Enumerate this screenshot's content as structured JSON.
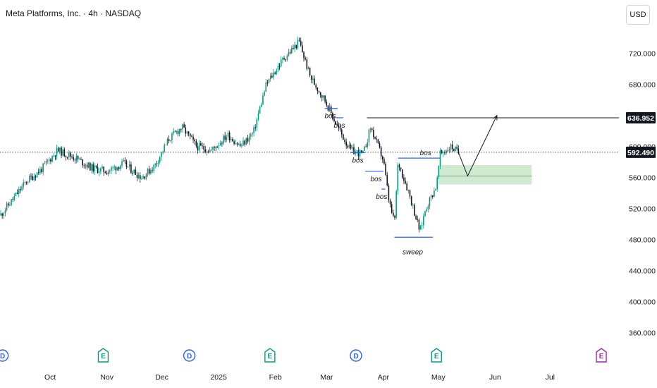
{
  "header": {
    "title": "Meta Platforms, Inc. · 4h · NASDAQ",
    "currency": "USD"
  },
  "chart_data": {
    "type": "candlestick",
    "xlabel": "",
    "ylabel": "",
    "ylim": [
      345,
      757
    ],
    "y_ticks": [
      360,
      400,
      440,
      480,
      520,
      560,
      600,
      640,
      680,
      720
    ],
    "y_tick_labels": [
      "360.000",
      "400.000",
      "440.000",
      "480.000",
      "520.000",
      "560.000",
      "600.000",
      "640.000",
      "680.000",
      "720.000"
    ],
    "x_ticks": [
      "Oct",
      "Nov",
      "Dec",
      "2025",
      "Feb",
      "Mar",
      "Apr",
      "May",
      "Jun",
      "Jul"
    ],
    "grid": false,
    "price_path": [
      {
        "date": "2024-09-04",
        "price": 512
      },
      {
        "date": "2024-09-10",
        "price": 530
      },
      {
        "date": "2024-09-18",
        "price": 555
      },
      {
        "date": "2024-09-26",
        "price": 570
      },
      {
        "date": "2024-10-05",
        "price": 595
      },
      {
        "date": "2024-10-15",
        "price": 585
      },
      {
        "date": "2024-10-24",
        "price": 572
      },
      {
        "date": "2024-11-01",
        "price": 568
      },
      {
        "date": "2024-11-10",
        "price": 578
      },
      {
        "date": "2024-11-20",
        "price": 560
      },
      {
        "date": "2024-11-27",
        "price": 575
      },
      {
        "date": "2024-12-05",
        "price": 610
      },
      {
        "date": "2024-12-12",
        "price": 625
      },
      {
        "date": "2024-12-20",
        "price": 600
      },
      {
        "date": "2024-12-28",
        "price": 595
      },
      {
        "date": "2025-01-06",
        "price": 615
      },
      {
        "date": "2025-01-13",
        "price": 600
      },
      {
        "date": "2025-01-20",
        "price": 618
      },
      {
        "date": "2025-01-27",
        "price": 680
      },
      {
        "date": "2025-02-05",
        "price": 712
      },
      {
        "date": "2025-02-14",
        "price": 735
      },
      {
        "date": "2025-02-20",
        "price": 690
      },
      {
        "date": "2025-02-28",
        "price": 660
      },
      {
        "date": "2025-03-07",
        "price": 625
      },
      {
        "date": "2025-03-14",
        "price": 595
      },
      {
        "date": "2025-03-21",
        "price": 590
      },
      {
        "date": "2025-03-25",
        "price": 625
      },
      {
        "date": "2025-04-01",
        "price": 582
      },
      {
        "date": "2025-04-04",
        "price": 530
      },
      {
        "date": "2025-04-07",
        "price": 500
      },
      {
        "date": "2025-04-09",
        "price": 580
      },
      {
        "date": "2025-04-15",
        "price": 540
      },
      {
        "date": "2025-04-21",
        "price": 490
      },
      {
        "date": "2025-04-24",
        "price": 520
      },
      {
        "date": "2025-04-30",
        "price": 550
      },
      {
        "date": "2025-05-02",
        "price": 590
      },
      {
        "date": "2025-05-08",
        "price": 600
      },
      {
        "date": "2025-05-12",
        "price": 592
      }
    ],
    "last_price": {
      "value": 592.49,
      "label": "592.490"
    },
    "target_level": {
      "value": 636.952,
      "label": "636.952",
      "start_date": "2025-03-23"
    },
    "demand_zone": {
      "start_date": "2025-05-01",
      "end_date": "2025-06-21",
      "top": 576,
      "bottom": 551,
      "mid": 562
    },
    "projection": [
      {
        "date": "2025-05-12",
        "price": 592
      },
      {
        "date": "2025-05-17",
        "price": 562
      },
      {
        "date": "2025-06-02",
        "price": 640
      }
    ],
    "annotations": [
      {
        "text": "bos",
        "level": 649,
        "line_start": "2025-02-28",
        "line_end": "2025-03-07",
        "label_date": "2025-03-03"
      },
      {
        "text": "bos",
        "level": 637,
        "line_start": "2025-03-06",
        "line_end": "2025-03-10",
        "label_date": "2025-03-08"
      },
      {
        "text": "bos",
        "level": 592,
        "line_start": "2025-03-14",
        "line_end": "2025-03-22",
        "label_date": "2025-03-18"
      },
      {
        "text": "bos",
        "level": 568,
        "line_start": "2025-03-22",
        "line_end": "2025-04-01",
        "label_date": "2025-03-28"
      },
      {
        "text": "bos",
        "level": 545,
        "line_start": "2025-03-31",
        "line_end": "2025-04-02",
        "label_date": "2025-03-31"
      },
      {
        "text": "bos",
        "level": 585,
        "line_start": "2025-04-09",
        "line_end": "2025-05-02",
        "label_date": "2025-04-24"
      },
      {
        "text": "sweep",
        "level": 483,
        "line_start": "2025-04-07",
        "line_end": "2025-04-28",
        "label_date": "2025-04-17"
      }
    ],
    "event_markers": [
      {
        "date": "2024-09-05",
        "letter": "D",
        "color": "#2962ff"
      },
      {
        "date": "2024-10-30",
        "letter": "E",
        "color": "#089981"
      },
      {
        "date": "2024-12-16",
        "letter": "D",
        "color": "#2962ff"
      },
      {
        "date": "2025-01-29",
        "letter": "E",
        "color": "#089981"
      },
      {
        "date": "2025-03-17",
        "letter": "D",
        "color": "#2962ff"
      },
      {
        "date": "2025-04-30",
        "letter": "E",
        "color": "#089981"
      },
      {
        "date": "2025-07-29",
        "letter": "E",
        "color": "#9c27b0"
      }
    ],
    "colors": {
      "up": "#089981",
      "down": "#131722",
      "annotation_line": "#2962ff",
      "zone_fill": "#c8e6c9",
      "label_bg": "#131722",
      "axis_text": "#131722"
    }
  }
}
